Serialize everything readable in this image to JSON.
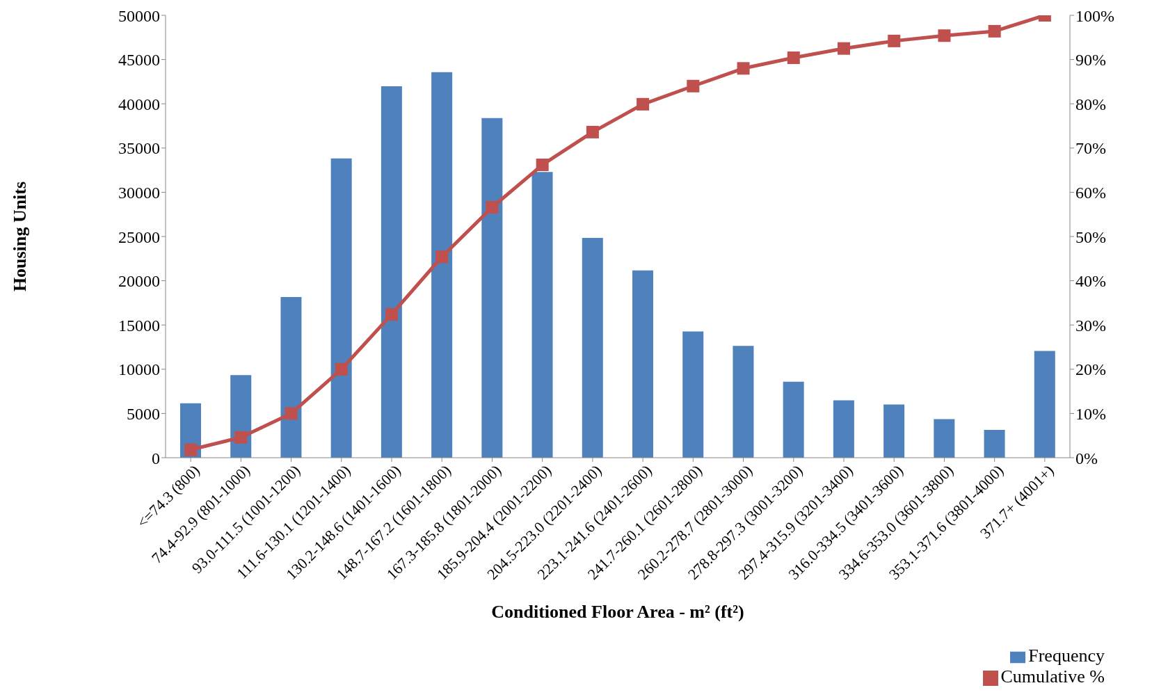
{
  "chart_data": {
    "type": "bar",
    "xlabel": "Conditioned Floor Area - m² (ft²)",
    "ylabel": "Housing Units",
    "categories": [
      "<=74.3 (800)",
      "74.4-92.9 (801-1000)",
      "93.0-111.5 (1001-1200)",
      "111.6-130.1 (1201-1400)",
      "130.2-148.6 (1401-1600)",
      "148.7-167.2 (1601-1800)",
      "167.3-185.8 (1801-2000)",
      "185.9-204.4 (2001-2200)",
      "204.5-223.0 (2201-2400)",
      "223.1-241.6 (2401-2600)",
      "241.7-260.1 (2601-2800)",
      "260.2-278.7 (2801-3000)",
      "278.8-297.3 (3001-3200)",
      "297.4-315.9 (3201-3400)",
      "316.0-334.5 (3401-3600)",
      "334.6-353.0 (3601-3800)",
      "353.1-371.6 (3801-4000)",
      "371.7+ (4001+)"
    ],
    "series": [
      {
        "name": "Frequency",
        "color": "#4f81bd",
        "values": [
          6150,
          9340,
          18170,
          33830,
          41990,
          43580,
          38390,
          32290,
          24840,
          21170,
          14270,
          12630,
          8590,
          6480,
          6010,
          4370,
          3150,
          12070
        ]
      },
      {
        "name": "Cumulative %",
        "type": "line",
        "axis": "y2",
        "color": "#c0504d",
        "marker": "square",
        "values": [
          1.8,
          4.6,
          10.0,
          20.0,
          32.4,
          45.4,
          56.6,
          66.2,
          73.6,
          79.9,
          84.0,
          88.0,
          90.4,
          92.5,
          94.2,
          95.4,
          96.4,
          100
        ]
      }
    ],
    "ylim": [
      0,
      50000
    ],
    "yticks": [
      0,
      5000,
      10000,
      15000,
      20000,
      25000,
      30000,
      35000,
      40000,
      45000,
      50000
    ],
    "y2lim": [
      0,
      100
    ],
    "y2ticks": [
      {
        "value": 0,
        "label": "0%"
      },
      {
        "value": 10,
        "label": "10%"
      },
      {
        "value": 20,
        "label": "20%"
      },
      {
        "value": 30,
        "label": "30%"
      },
      {
        "value": 40,
        "label": "40%"
      },
      {
        "value": 50,
        "label": "50%"
      },
      {
        "value": 60,
        "label": "60%"
      },
      {
        "value": 70,
        "label": "70%"
      },
      {
        "value": 80,
        "label": "80%"
      },
      {
        "value": 90,
        "label": "90%"
      },
      {
        "value": 100,
        "label": "100%"
      }
    ],
    "grid": false,
    "legend": "bottom right"
  }
}
